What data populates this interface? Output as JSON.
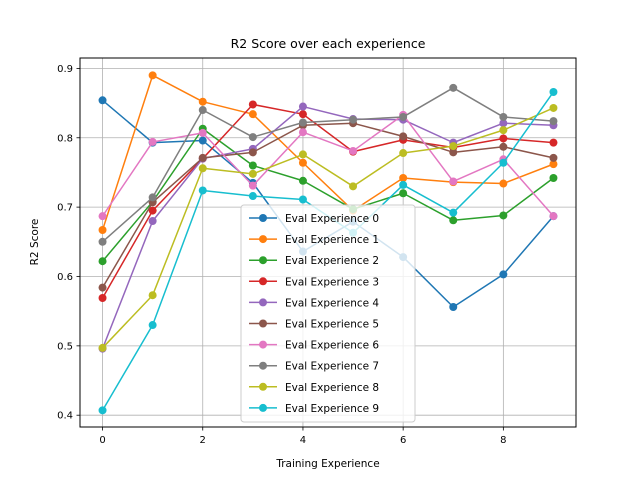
{
  "chart_data": {
    "type": "line",
    "title": "R2 Score over each experience",
    "xlabel": "Training Experience",
    "ylabel": "R2 Score",
    "xlim": [
      -0.45,
      9.45
    ],
    "ylim": [
      0.383,
      0.915
    ],
    "xticks": [
      0,
      2,
      4,
      6,
      8
    ],
    "yticks": [
      0.4,
      0.5,
      0.6,
      0.7,
      0.8,
      0.9
    ],
    "grid": true,
    "legend_position": "center",
    "x": [
      0,
      1,
      2,
      3,
      4,
      5,
      6,
      7,
      8,
      9
    ],
    "series": [
      {
        "name": "Eval Experience 0",
        "color": "#1f77b4",
        "values": [
          0.854,
          0.793,
          0.796,
          0.735,
          0.636,
          0.679,
          0.628,
          0.556,
          0.603,
          0.687
        ]
      },
      {
        "name": "Eval Experience 1",
        "color": "#ff7f0e",
        "values": [
          0.667,
          0.89,
          0.852,
          0.834,
          0.764,
          0.695,
          0.742,
          0.736,
          0.734,
          0.762
        ]
      },
      {
        "name": "Eval Experience 2",
        "color": "#2ca02c",
        "values": [
          0.622,
          0.708,
          0.813,
          0.76,
          0.738,
          0.697,
          0.72,
          0.681,
          0.688,
          0.742
        ]
      },
      {
        "name": "Eval Experience 3",
        "color": "#d62728",
        "values": [
          0.569,
          0.695,
          0.77,
          0.848,
          0.834,
          0.78,
          0.797,
          0.786,
          0.799,
          0.793
        ]
      },
      {
        "name": "Eval Experience 4",
        "color": "#9467bd",
        "values": [
          0.496,
          0.68,
          0.77,
          0.784,
          0.845,
          0.827,
          0.826,
          0.793,
          0.821,
          0.818
        ]
      },
      {
        "name": "Eval Experience 5",
        "color": "#8c564b",
        "values": [
          0.584,
          0.707,
          0.771,
          0.779,
          0.818,
          0.821,
          0.802,
          0.779,
          0.787,
          0.771
        ]
      },
      {
        "name": "Eval Experience 6",
        "color": "#e377c2",
        "values": [
          0.687,
          0.794,
          0.807,
          0.731,
          0.808,
          0.781,
          0.833,
          0.737,
          0.769,
          0.687
        ]
      },
      {
        "name": "Eval Experience 7",
        "color": "#7f7f7f",
        "values": [
          0.65,
          0.714,
          0.84,
          0.801,
          0.822,
          0.826,
          0.83,
          0.872,
          0.83,
          0.824
        ]
      },
      {
        "name": "Eval Experience 8",
        "color": "#bcbd22",
        "values": [
          0.497,
          0.573,
          0.756,
          0.748,
          0.776,
          0.73,
          0.778,
          0.788,
          0.811,
          0.843
        ]
      },
      {
        "name": "Eval Experience 9",
        "color": "#17becf",
        "values": [
          0.407,
          0.53,
          0.724,
          0.716,
          0.711,
          0.663,
          0.732,
          0.692,
          0.764,
          0.866
        ]
      }
    ]
  }
}
